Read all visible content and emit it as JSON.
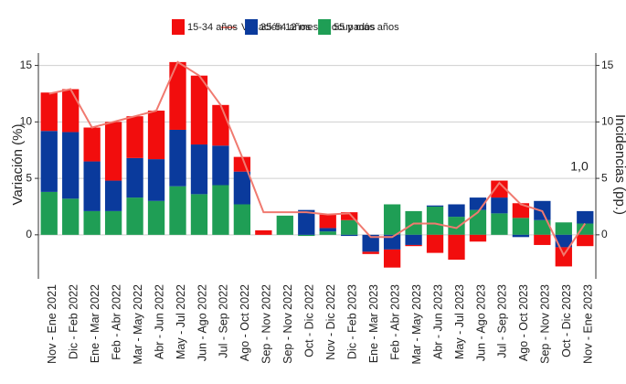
{
  "chart_data": {
    "type": "bar",
    "y_label": "Variación (%)",
    "y2_label": "Incidencias (pp.)",
    "annotation": "1,0",
    "categories": [
      "Nov - Ene 2021",
      "Dic - Feb 2022",
      "Ene - Mar 2022",
      "Feb - Abr 2022",
      "Mar - May 2022",
      "Abr - Jun 2022",
      "May - Jul 2022",
      "Jun - Ago 2022",
      "Jul - Sep 2022",
      "Ago - Oct 2022",
      "Sep - Nov 2022",
      "Sep - Nov 2022",
      "Oct - Dic 2022",
      "Nov - Dic 2022",
      "Dic - Feb 2023",
      "Ene - Mar 2023",
      "Feb - Abr 2023",
      "Mar - May 2023",
      "Abr - Jun 2023",
      "May - Jul 2023",
      "Jun - Ago 2023",
      "Jul - Sep 2023",
      "Ago - Oct 2023",
      "Sep - Nov 2023",
      "Oct - Dic 2023",
      "Nov - Ene 2023"
    ],
    "series": [
      {
        "name": "55 y más años",
        "color": "#1f9e55",
        "values": [
          3.8,
          3.2,
          2.1,
          2.1,
          3.3,
          3.0,
          4.3,
          3.6,
          4.4,
          2.7,
          0,
          1.7,
          -0.1,
          0.3,
          1.3,
          0,
          2.7,
          2.1,
          2.5,
          1.6,
          2.2,
          1.9,
          1.5,
          1.3,
          1.1,
          1.0
        ]
      },
      {
        "name": "35-54 años",
        "color": "#0a3a9c",
        "values": [
          5.4,
          5.9,
          4.4,
          2.7,
          3.5,
          3.7,
          5.0,
          4.4,
          3.5,
          2.9,
          0,
          0,
          2.2,
          0.3,
          -0.1,
          -1.5,
          -1.3,
          -0.9,
          0.1,
          1.1,
          1.1,
          1.4,
          -0.2,
          1.7,
          -1.1,
          1.1
        ]
      },
      {
        "name": "15-34 años",
        "color": "#f20d0d",
        "values": [
          3.4,
          3.8,
          3.0,
          5.2,
          3.7,
          4.3,
          6.0,
          6.1,
          3.6,
          1.3,
          0.4,
          0,
          0,
          1.2,
          0.7,
          -0.2,
          -1.6,
          -0.1,
          -1.6,
          -2.2,
          -0.6,
          1.5,
          1.3,
          -0.9,
          -1.7,
          -1.0
        ]
      },
      {
        "name": "Variación 12 meses ocupados",
        "type": "line",
        "axis": "y2",
        "color": "#f07a70",
        "values": [
          12.5,
          12.9,
          9.5,
          10.0,
          10.5,
          11.0,
          15.3,
          14.1,
          11.5,
          6.9,
          2.0,
          2.0,
          2.0,
          1.8,
          1.9,
          -0.2,
          -0.2,
          1.0,
          1.0,
          0.6,
          2.0,
          4.6,
          2.7,
          2.1,
          -1.8,
          1.0
        ]
      }
    ],
    "ylim": [
      -3.9,
      16.1
    ],
    "yticks": [
      0,
      5,
      10,
      15
    ],
    "y2lim": [
      -3.9,
      16.1
    ],
    "y2ticks": [
      0,
      5,
      10,
      15
    ],
    "grid": true
  }
}
